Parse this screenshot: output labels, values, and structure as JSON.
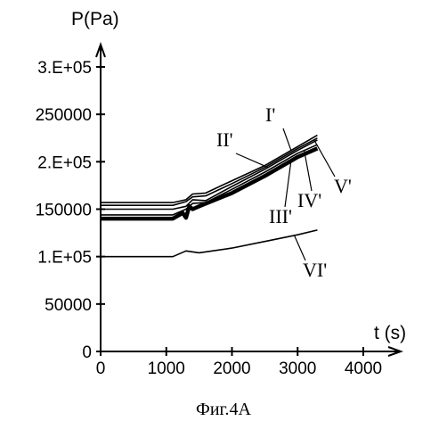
{
  "caption": "Фиг.4А",
  "chart_data": {
    "type": "line",
    "title": "",
    "xlabel": "t (s)",
    "ylabel": "P(Pa)",
    "xlim": [
      0,
      4000
    ],
    "ylim": [
      0,
      300000
    ],
    "x_ticks": [
      0,
      1000,
      2000,
      3000,
      4000
    ],
    "x_tick_labels": [
      "0",
      "1000",
      "2000",
      "3000",
      "4000"
    ],
    "y_ticks": [
      0,
      50000,
      100000,
      150000,
      200000,
      250000,
      300000
    ],
    "y_tick_labels": [
      "0",
      "50000",
      "1.E+05",
      "150000",
      "2.E+05",
      "250000",
      "3.E+05"
    ],
    "grid": false,
    "series": [
      {
        "name": "I'",
        "x": [
          0,
          1100,
          1300,
          1400,
          1600,
          2000,
          2500,
          3000,
          3300
        ],
        "y": [
          157000,
          157000,
          160000,
          166000,
          167000,
          180000,
          196000,
          216000,
          228000
        ]
      },
      {
        "name": "II'",
        "x": [
          0,
          1100,
          1300,
          1400,
          1600,
          2000,
          2500,
          3000,
          3300
        ],
        "y": [
          150000,
          150000,
          153000,
          160000,
          159000,
          174000,
          192000,
          212000,
          223000
        ]
      },
      {
        "name": "III'",
        "x": [
          0,
          1100,
          1250,
          1300,
          1350,
          1400,
          1500,
          2000,
          2500,
          3000,
          3300
        ],
        "y": [
          140000,
          140000,
          146000,
          141000,
          153000,
          150000,
          153000,
          167000,
          185000,
          205000,
          214000
        ]
      },
      {
        "name": "IV'",
        "x": [
          0,
          1100,
          1300,
          1400,
          1600,
          2000,
          2500,
          3000,
          3300
        ],
        "y": [
          144000,
          144000,
          150000,
          156000,
          157000,
          171000,
          189000,
          209000,
          218000
        ]
      },
      {
        "name": "V'",
        "x": [
          0,
          1100,
          1300,
          1400,
          1600,
          2000,
          2500,
          3000,
          3300
        ],
        "y": [
          154000,
          154000,
          158000,
          163000,
          164000,
          177000,
          194000,
          214000,
          225000
        ]
      },
      {
        "name": "VI'",
        "x": [
          0,
          1100,
          1300,
          1500,
          2000,
          2500,
          3000,
          3300
        ],
        "y": [
          100000,
          100000,
          106000,
          104000,
          109000,
          116000,
          123000,
          128000
        ]
      }
    ]
  }
}
